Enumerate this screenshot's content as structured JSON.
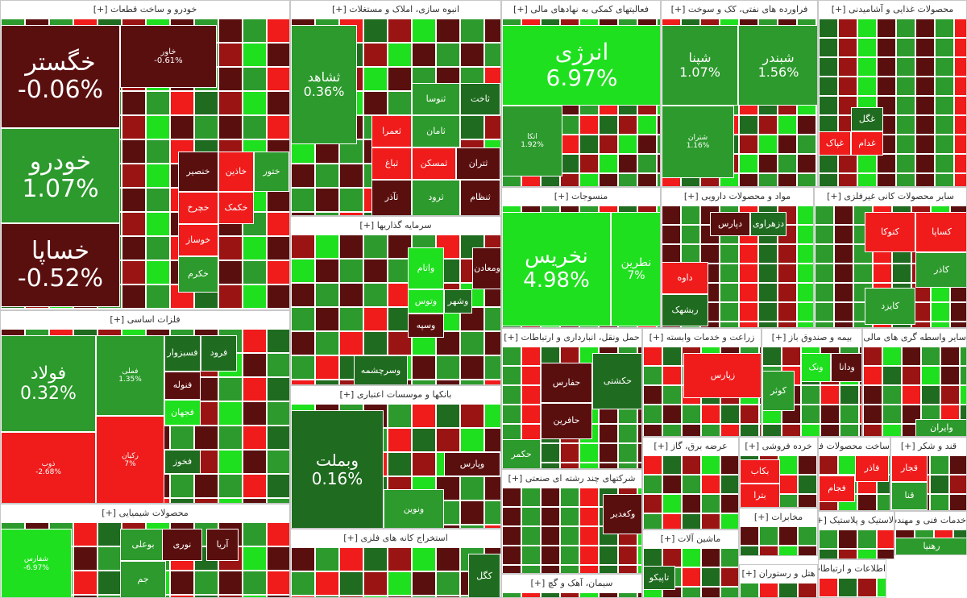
{
  "chart_data": {
    "type": "treemap",
    "colors": {
      "strong_up": "#1fe01f",
      "up": "#2c9a2c",
      "slight_up": "#1f6b1f",
      "slight_down": "#5a0f0f",
      "down": "#9b1414",
      "strong_down": "#f01b1b"
    },
    "sectors": [
      {
        "title": "خودرو و ساخت قطعات [+]",
        "stocks": [
          {
            "name": "خگستر",
            "change": "-0.06%"
          },
          {
            "name": "خودرو",
            "change": "1.07%"
          },
          {
            "name": "خساپا",
            "change": "-0.52%"
          },
          {
            "name": "خاور",
            "change": "-0.61%"
          },
          {
            "name": "خنصیر"
          },
          {
            "name": "خاذین"
          },
          {
            "name": "ختور"
          },
          {
            "name": "خچرخ"
          },
          {
            "name": "خکمک"
          },
          {
            "name": "خوساز"
          },
          {
            "name": "خکرم"
          }
        ]
      },
      {
        "title": "انبوه سازی، املاک و مستغلات [+]",
        "stocks": [
          {
            "name": "ثشاهد",
            "change": "0.36%"
          },
          {
            "name": "ثاخت"
          },
          {
            "name": "ثنوسا"
          },
          {
            "name": "ثامان"
          },
          {
            "name": "ثعمرا"
          },
          {
            "name": "ثمسکن"
          },
          {
            "name": "ثباغ"
          },
          {
            "name": "ثآذر"
          },
          {
            "name": "ثرود"
          },
          {
            "name": "ثتران"
          },
          {
            "name": "ثنظام"
          }
        ]
      },
      {
        "title": "فعالیتهای کمکی به نهادهای مالی [+]",
        "stocks": [
          {
            "name": "انرژی",
            "change": "6.97%"
          },
          {
            "name": "اتکا",
            "change": "1.92%"
          }
        ]
      },
      {
        "title": "فراورده های نفتی، کک و سوخت [+]",
        "stocks": [
          {
            "name": "شپنا",
            "change": "1.07%"
          },
          {
            "name": "شبندر",
            "change": "1.56%"
          },
          {
            "name": "شتران",
            "change": "1.16%"
          }
        ]
      },
      {
        "title": "محصولات غذایی و آشامیدنی [+]",
        "stocks": [
          {
            "name": "غگل"
          },
          {
            "name": "غدام"
          },
          {
            "name": "غپاک"
          }
        ]
      },
      {
        "title": "سرمایه گذاریها [+]",
        "stocks": [
          {
            "name": "ومعادن"
          },
          {
            "name": "واتام"
          },
          {
            "name": "وتوس"
          },
          {
            "name": "وسپه"
          },
          {
            "name": "وشهر"
          },
          {
            "name": "وسرچشمه"
          }
        ]
      },
      {
        "title": "منسوجات [+]",
        "stocks": [
          {
            "name": "نخریس",
            "change": "4.98%"
          },
          {
            "name": "نطرین",
            "change": "7%"
          }
        ]
      },
      {
        "title": "مواد و محصولات دارویی [+]",
        "stocks": [
          {
            "name": "دپارس"
          },
          {
            "name": "داوه"
          },
          {
            "name": "دزهراوی"
          },
          {
            "name": "ربشهک"
          }
        ]
      },
      {
        "title": "سایر محصولات کانی غیرفلزی [+]",
        "stocks": [
          {
            "name": "کساپا"
          },
          {
            "name": "کتوکا"
          },
          {
            "name": "کاذر"
          },
          {
            "name": "کایزد"
          }
        ]
      },
      {
        "title": "فلزات اساسی [+]",
        "stocks": [
          {
            "name": "فولاد",
            "change": "0.32%"
          },
          {
            "name": "فملی",
            "change": "1.35%"
          },
          {
            "name": "ذوب",
            "change": "-2.68%"
          },
          {
            "name": "رکیان",
            "change": "7%"
          },
          {
            "name": "فسبزوار"
          },
          {
            "name": "فرود"
          },
          {
            "name": "فنوله"
          },
          {
            "name": "فجهان"
          },
          {
            "name": "فخوز"
          }
        ]
      },
      {
        "title": "حمل ونقل، انبارداری و ارتباطات [+]",
        "stocks": [
          {
            "name": "حکشتی"
          },
          {
            "name": "حفارس"
          },
          {
            "name": "حافرین"
          },
          {
            "name": "حکمر"
          }
        ]
      },
      {
        "title": "زراعت و خدمات وابسته [+]",
        "stocks": [
          {
            "name": "زپارس"
          }
        ]
      },
      {
        "title": "بیمه و صندوق باز [+]",
        "stocks": [
          {
            "name": "ودانا"
          },
          {
            "name": "ونک"
          },
          {
            "name": "کوثر"
          }
        ]
      },
      {
        "title": "سایر واسطه گری های مالی [+]",
        "stocks": [
          {
            "name": "وایران"
          }
        ]
      },
      {
        "title": "بانکها و موسسات اعتباری [+]",
        "stocks": [
          {
            "name": "وبملت",
            "change": "0.16%"
          },
          {
            "name": "وپارس"
          },
          {
            "name": "ونوین"
          }
        ]
      },
      {
        "title": "شرکتهای چند رشته ای صنعتی [+]",
        "stocks": [
          {
            "name": "وکغدیر"
          }
        ]
      },
      {
        "title": "محصولات شیمیایی [+]",
        "stocks": [
          {
            "name": "شفارس",
            "change": "-6.97%"
          },
          {
            "name": "بوعلی"
          },
          {
            "name": "نوری"
          },
          {
            "name": "آریا"
          },
          {
            "name": "جم"
          }
        ]
      },
      {
        "title": "استخراج کانه های فلزی [+]",
        "stocks": [
          {
            "name": "کگل"
          }
        ]
      },
      {
        "title": "سیمان، آهک و گچ [+]",
        "stocks": []
      },
      {
        "title": "عرضه برق، گاز [+]",
        "stocks": []
      },
      {
        "title": "ماشین آلات [+]",
        "stocks": [
          {
            "name": "تاپیکو"
          }
        ]
      },
      {
        "title": "ساخت محصولات فلزی [+]",
        "stocks": [
          {
            "name": "فجام"
          },
          {
            "name": "فاذر"
          }
        ]
      },
      {
        "title": "قند و شکر [+]",
        "stocks": [
          {
            "name": "قجار"
          },
          {
            "name": "قنا"
          }
        ]
      },
      {
        "title": "مخابرات [+]",
        "stocks": []
      },
      {
        "title": "لاستیک و پلاستیک [+]",
        "stocks": []
      },
      {
        "title": "خدمات فنی و مهندسی [+]",
        "stocks": [
          {
            "name": "رهنیا"
          }
        ]
      },
      {
        "title": "هتل و رستوران [+]",
        "stocks": []
      },
      {
        "title": "اطلاعات و ارتباطات [+]",
        "stocks": []
      },
      {
        "title": "خرده فروشی [+]",
        "stocks": [
          {
            "name": "بکاب"
          },
          {
            "name": "بترا"
          }
        ]
      }
    ]
  }
}
